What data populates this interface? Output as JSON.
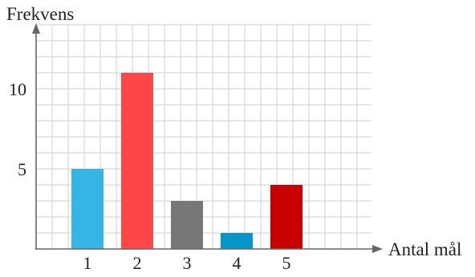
{
  "chart_data": {
    "type": "bar",
    "ylabel": "Frekvens",
    "xlabel": "Antal mål",
    "categories": [
      "1",
      "2",
      "3",
      "4",
      "5"
    ],
    "values": [
      5,
      11,
      3,
      1,
      4
    ],
    "bar_colors": [
      "#35b5e5",
      "#fd4646",
      "#777777",
      "#0796c8",
      "#c80000"
    ],
    "yticks": [
      5,
      10
    ],
    "ylim": [
      0,
      14
    ],
    "grid": true
  },
  "colors": {
    "grid": "#cfcfcf",
    "axis": "#666666"
  }
}
